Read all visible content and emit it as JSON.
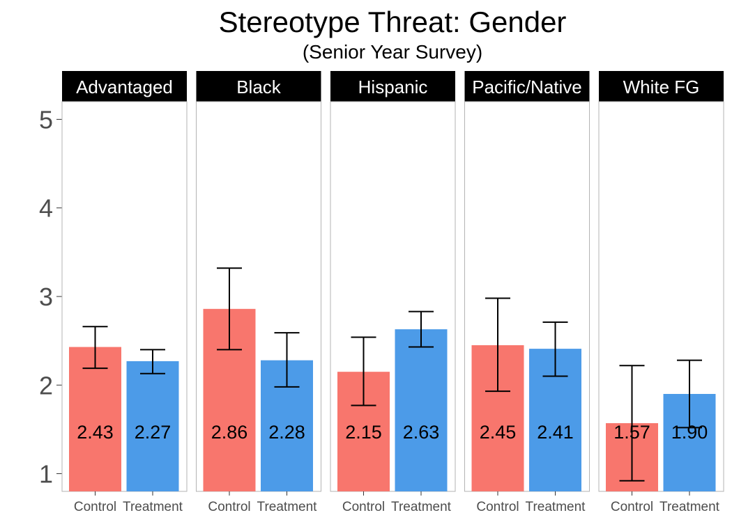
{
  "chart_data": {
    "type": "bar",
    "title": "Stereotype Threat: Gender",
    "subtitle": "(Senior Year Survey)",
    "xlabel": "",
    "ylabel": "",
    "ylim": [
      0.8,
      5.2
    ],
    "yticks": [
      1,
      2,
      3,
      4,
      5
    ],
    "grid": false,
    "colors": {
      "Control": "#F8766D",
      "Treatment": "#4C9BE8"
    },
    "conditions": [
      "Control",
      "Treatment"
    ],
    "facets": [
      {
        "name": "Advantaged",
        "bars": [
          {
            "group": "Control",
            "value": 2.43,
            "label": "2.43",
            "err_low": 2.19,
            "err_high": 2.66
          },
          {
            "group": "Treatment",
            "value": 2.27,
            "label": "2.27",
            "err_low": 2.13,
            "err_high": 2.4
          }
        ]
      },
      {
        "name": "Black",
        "bars": [
          {
            "group": "Control",
            "value": 2.86,
            "label": "2.86",
            "err_low": 2.4,
            "err_high": 3.32
          },
          {
            "group": "Treatment",
            "value": 2.28,
            "label": "2.28",
            "err_low": 1.98,
            "err_high": 2.59
          }
        ]
      },
      {
        "name": "Hispanic",
        "bars": [
          {
            "group": "Control",
            "value": 2.15,
            "label": "2.15",
            "err_low": 1.77,
            "err_high": 2.54
          },
          {
            "group": "Treatment",
            "value": 2.63,
            "label": "2.63",
            "err_low": 2.43,
            "err_high": 2.83
          }
        ]
      },
      {
        "name": "Pacific/Native",
        "bars": [
          {
            "group": "Control",
            "value": 2.45,
            "label": "2.45",
            "err_low": 1.93,
            "err_high": 2.98
          },
          {
            "group": "Treatment",
            "value": 2.41,
            "label": "2.41",
            "err_low": 2.1,
            "err_high": 2.71
          }
        ]
      },
      {
        "name": "White FG",
        "bars": [
          {
            "group": "Control",
            "value": 1.57,
            "label": "1.57",
            "err_low": 0.92,
            "err_high": 2.22
          },
          {
            "group": "Treatment",
            "value": 1.9,
            "label": "1.90",
            "err_low": 1.52,
            "err_high": 2.28
          }
        ]
      }
    ]
  }
}
